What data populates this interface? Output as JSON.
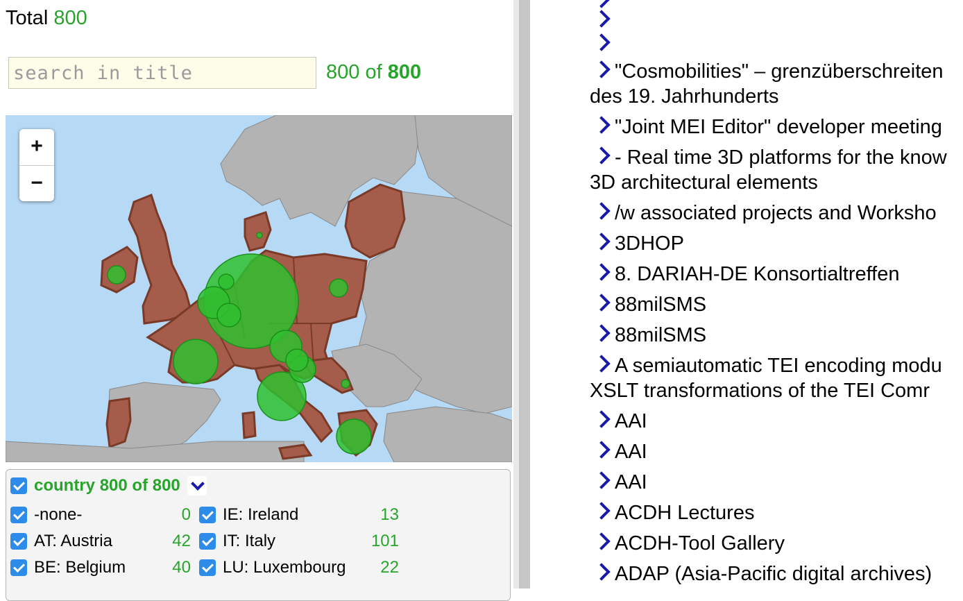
{
  "summary": {
    "total_label": "Total",
    "total_value": "800"
  },
  "search": {
    "placeholder": "search in title",
    "value": ""
  },
  "result_count": {
    "shown": "800",
    "of_label": "of",
    "total": "800"
  },
  "map": {
    "zoom_in_label": "+",
    "zoom_out_label": "−",
    "colors": {
      "sea": "#b6d9f5",
      "land": "#b3b3b3",
      "highlighted_country": "#a55c4a",
      "marker": "#2fbf2f"
    }
  },
  "facet": {
    "title": "country",
    "shown": "800",
    "of_label": "of",
    "total": "800",
    "col1": [
      {
        "label": "-none-",
        "count": "0"
      },
      {
        "label": "AT: Austria",
        "count": "42"
      },
      {
        "label": "BE: Belgium",
        "count": "40"
      }
    ],
    "col2": [
      {
        "label": "IE: Ireland",
        "count": "13"
      },
      {
        "label": "IT: Italy",
        "count": "101"
      },
      {
        "label": "LU: Luxembourg",
        "count": "22"
      }
    ]
  },
  "list": {
    "items": [
      {
        "line1": "",
        "line2": ""
      },
      {
        "line1": "",
        "line2": ""
      },
      {
        "line1": "",
        "line2": ""
      },
      {
        "line1": "\"Cosmobilities\" – grenzüberschreiten",
        "line2": "des 19. Jahrhunderts"
      },
      {
        "line1": "\"Joint MEI Editor\" developer meeting",
        "line2": ""
      },
      {
        "line1": "- Real time 3D platforms for the know",
        "line2": "3D architectural elements"
      },
      {
        "line1": "/w associated projects and Worksho",
        "line2": ""
      },
      {
        "line1": "3DHOP",
        "line2": ""
      },
      {
        "line1": "8. DARIAH-DE Konsortialtreffen",
        "line2": ""
      },
      {
        "line1": "88milSMS",
        "line2": ""
      },
      {
        "line1": "88milSMS",
        "line2": ""
      },
      {
        "line1": "A semiautomatic TEI encoding modu",
        "line2": "XSLT transformations of the TEI Comr"
      },
      {
        "line1": "AAI",
        "line2": ""
      },
      {
        "line1": "AAI",
        "line2": ""
      },
      {
        "line1": "AAI",
        "line2": ""
      },
      {
        "line1": "ACDH Lectures",
        "line2": ""
      },
      {
        "line1": "ACDH-Tool Gallery",
        "line2": ""
      },
      {
        "line1": "ADAP (Asia-Pacific digital archives)",
        "line2": ""
      }
    ]
  }
}
